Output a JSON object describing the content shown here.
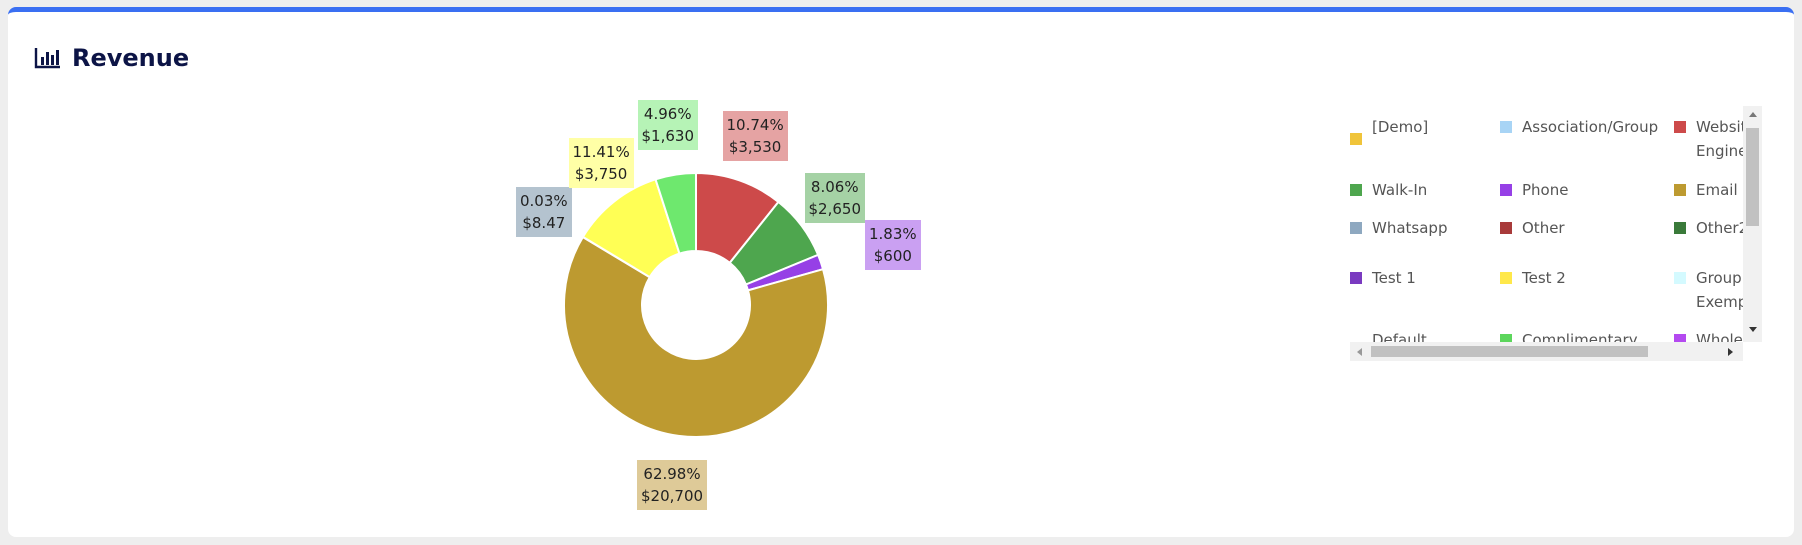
{
  "header": {
    "title": "Revenue",
    "icon": "bar-chart-icon"
  },
  "chart_data": {
    "type": "pie",
    "title": "Revenue",
    "slices": [
      {
        "name": "Website Engine",
        "value": 3530,
        "percent": "10.74%",
        "value_label": "$3,530",
        "color": "#cd4a4a",
        "label_bg": "#e5a3a3"
      },
      {
        "name": "Walk-In",
        "value": 2650,
        "percent": "8.06%",
        "value_label": "$2,650",
        "color": "#4ea64e",
        "label_bg": "#a5d2a5"
      },
      {
        "name": "Phone",
        "value": 600,
        "percent": "1.83%",
        "value_label": "$600",
        "color": "#9640e6",
        "label_bg": "#caa0f2"
      },
      {
        "name": "Email",
        "value": 20700,
        "percent": "62.98%",
        "value_label": "$20,700",
        "color": "#bd9a30",
        "label_bg": "#deca98"
      },
      {
        "name": "Whatsapp",
        "value": 8.47,
        "percent": "0.03%",
        "value_label": "$8.47",
        "color": "#8ea8c0",
        "label_bg": "#b4c3cf"
      },
      {
        "name": "Test 2",
        "value": 3750,
        "percent": "11.41%",
        "value_label": "$3,750",
        "color": "#ffff55",
        "label_bg": "#ffffa6"
      },
      {
        "name": "Complimentary",
        "value": 1630,
        "percent": "4.96%",
        "value_label": "$1,630",
        "color": "#6ee86e",
        "label_bg": "#b6f3b6"
      }
    ]
  },
  "legend": {
    "items": [
      {
        "label": "[Demo]",
        "color": "#f0c43a"
      },
      {
        "label": "Association/Group",
        "color": "#a8d4f5"
      },
      {
        "label": "Website Engine",
        "color": "#cd4a4a"
      },
      {
        "label": "Walk-In",
        "color": "#4ea64e"
      },
      {
        "label": "Phone",
        "color": "#9640e6"
      },
      {
        "label": "Email",
        "color": "#bd9a30"
      },
      {
        "label": "Whatsapp",
        "color": "#8ea8c0"
      },
      {
        "label": "Other",
        "color": "#a83a3a"
      },
      {
        "label": "Other2",
        "color": "#3a7a3a"
      },
      {
        "label": "Test 1",
        "color": "#7a3ac0"
      },
      {
        "label": "Test 2",
        "color": "#ffe84a"
      },
      {
        "label": "Group Exempt",
        "color": "#d4faff"
      },
      {
        "label": "Default",
        "color": "#f06060"
      },
      {
        "label": "Complimentary",
        "color": "#5cd65c"
      },
      {
        "label": "Wholesale",
        "color": "#b44af0"
      }
    ]
  }
}
